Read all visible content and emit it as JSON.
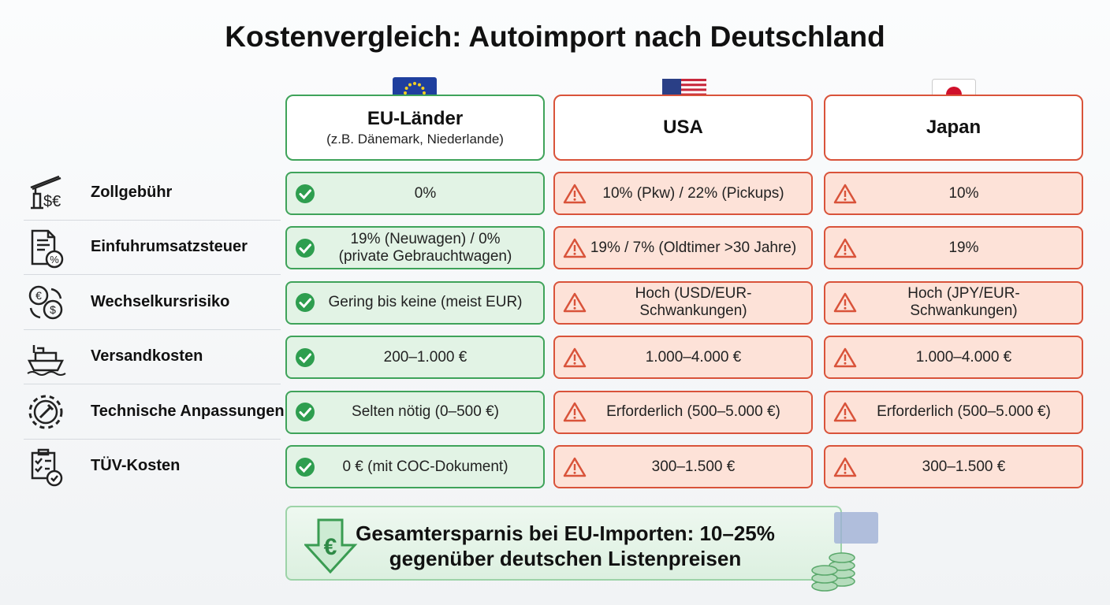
{
  "title": "Kostenvergleich: Autoimport nach Deutschland",
  "columns": [
    {
      "name": "EU-Länder",
      "subtitle": "(z.B. Dänemark, Niederlande)"
    },
    {
      "name": "USA"
    },
    {
      "name": "Japan"
    }
  ],
  "rows": [
    {
      "label": "Zollgebühr",
      "cells": [
        [
          "0%"
        ],
        [
          "10% (Pkw) / 22% (Pickups)"
        ],
        [
          "10%"
        ]
      ]
    },
    {
      "label": "Einfuhrumsatzsteuer",
      "cells": [
        [
          "19% (Neuwagen) / 0%",
          "(private Gebrauchtwagen)"
        ],
        [
          "19% / 7% (Oldtimer >30 Jahre)"
        ],
        [
          "19%"
        ]
      ]
    },
    {
      "label": "Wechselkursrisiko",
      "cells": [
        [
          "Gering bis keine (meist EUR)"
        ],
        [
          "Hoch (USD/EUR-Schwankungen)"
        ],
        [
          "Hoch (JPY/EUR-Schwankungen)"
        ]
      ]
    },
    {
      "label": "Versandkosten",
      "cells": [
        [
          "200–1.000 €"
        ],
        [
          "1.000–4.000 €"
        ],
        [
          "1.000–4.000 €"
        ]
      ]
    },
    {
      "label": "Technische Anpassungen",
      "cells": [
        [
          "Selten nötig (0–500 €)"
        ],
        [
          "Erforderlich (500–5.000 €)"
        ],
        [
          "Erforderlich (500–5.000 €)"
        ]
      ]
    },
    {
      "label": "TÜV-Kosten",
      "cells": [
        [
          "0 € (mit COC-Dokument)"
        ],
        [
          "300–1.500 €"
        ],
        [
          "300–1.500 €"
        ]
      ]
    }
  ],
  "footer": {
    "icon": "€",
    "lines": [
      "Gesamtersparnis bei EU-Importen: 10–25%",
      "gegenüber deutschen Listenpreisen"
    ]
  }
}
